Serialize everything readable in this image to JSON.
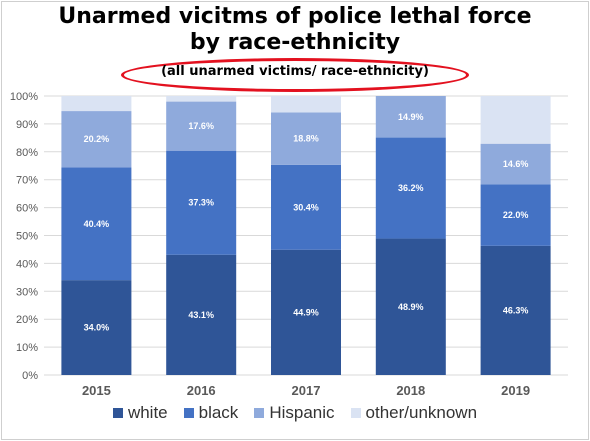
{
  "chart_data": {
    "type": "bar",
    "stacked": true,
    "title_lines": [
      "Unarmed vicitms of police lethal force",
      "by race-ethnicity"
    ],
    "subtitle": "(all unarmed victims/ race-ethnicity)",
    "categories": [
      "2015",
      "2016",
      "2017",
      "2018",
      "2019"
    ],
    "series": [
      {
        "name": "white",
        "values": [
          34.0,
          43.1,
          44.9,
          48.9,
          46.3
        ],
        "labels": [
          "34.0%",
          "43.1%",
          "44.9%",
          "48.9%",
          "46.3%"
        ],
        "color": "#2f5597"
      },
      {
        "name": "black",
        "values": [
          40.4,
          37.3,
          30.4,
          36.2,
          22.0
        ],
        "labels": [
          "40.4%",
          "37.3%",
          "30.4%",
          "36.2%",
          "22.0%"
        ],
        "color": "#4472c4"
      },
      {
        "name": "Hispanic",
        "values": [
          20.2,
          17.6,
          18.8,
          14.9,
          14.6
        ],
        "labels": [
          "20.2%",
          "17.6%",
          "18.8%",
          "14.9%",
          "14.6%"
        ],
        "color": "#8faadc"
      },
      {
        "name": "other/unknown",
        "values": [
          5.4,
          2.0,
          5.9,
          0.0,
          17.1
        ],
        "labels": [
          "",
          "",
          "",
          "",
          ""
        ],
        "color": "#dae3f3"
      }
    ],
    "y_ticks": [
      "0%",
      "10%",
      "20%",
      "30%",
      "40%",
      "50%",
      "60%",
      "70%",
      "80%",
      "90%",
      "100%"
    ],
    "ylim": [
      0,
      100
    ],
    "grid": true,
    "legend_position": "bottom",
    "annotation": "red ellipse around subtitle"
  }
}
